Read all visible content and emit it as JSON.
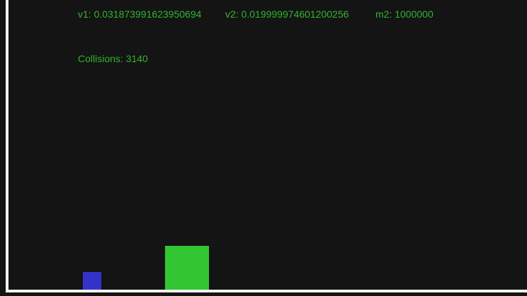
{
  "stats": {
    "v1": "v1: 0.031873991623950694",
    "v2": "v2: 0.019999974601200256",
    "m2": "m2: 1000000",
    "collisions": "Collisions: 3140"
  },
  "colors": {
    "background": "#141414",
    "text": "#2fb52f",
    "small_block": "#3333cc",
    "large_block": "#33c633",
    "boundary": "#f2f2f2"
  }
}
